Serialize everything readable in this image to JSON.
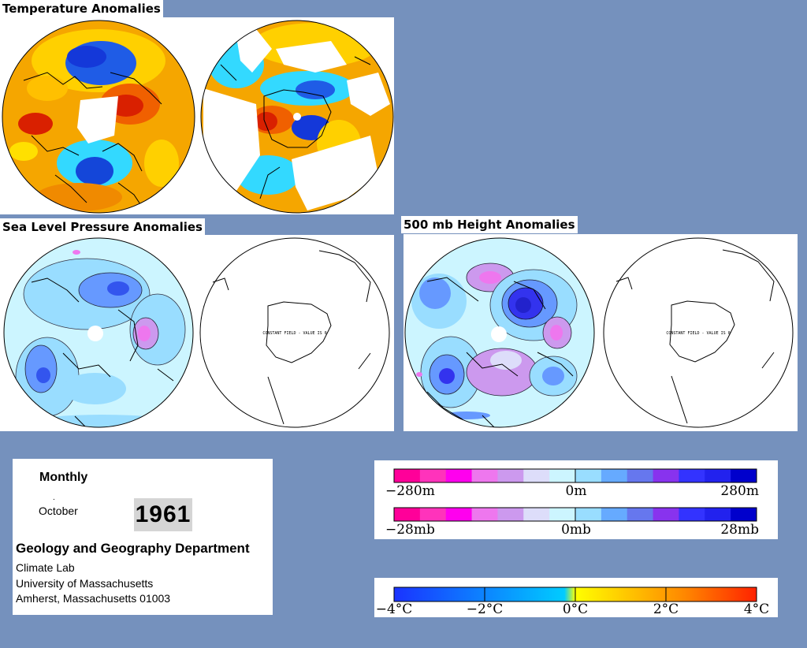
{
  "titles": {
    "temperature": "Temperature Anomalies",
    "slp": "Sea Level Pressure Anomalies",
    "height500": "500 mb Height Anomalies"
  },
  "maps": {
    "constant_field_note": "CONSTANT FIELD - VALUE IS 0"
  },
  "info": {
    "period": "Monthly",
    "month": "October",
    "year": "1961",
    "department": "Geology and Geography Department",
    "lab": "Climate Lab",
    "university": "University of Massachusetts",
    "address": "Amherst, Massachusetts 01003"
  },
  "scales": {
    "height": {
      "min_label": "−280m",
      "mid_label": "0m",
      "max_label": "280m"
    },
    "pressure": {
      "min_label": "−28mb",
      "mid_label": "0mb",
      "max_label": "28mb"
    },
    "temperature": {
      "labels": [
        "−4°C",
        "−2°C",
        "0°C",
        "2°C",
        "4°C"
      ]
    }
  },
  "colors": {
    "page_background": "#7591bd",
    "anomaly_scale": [
      "#ff0099",
      "#ff33bb",
      "#ff00ee",
      "#ee77ee",
      "#cc99ee",
      "#ddddfa",
      "#ccf5ff",
      "#99ddff",
      "#66aaff",
      "#6677ee",
      "#8833ee",
      "#3333ff",
      "#2222ee",
      "#0000cc"
    ],
    "temperature_scale": [
      "#1a33ff",
      "#00ccff",
      "#ffff00",
      "#ff8800",
      "#ff2200"
    ]
  }
}
